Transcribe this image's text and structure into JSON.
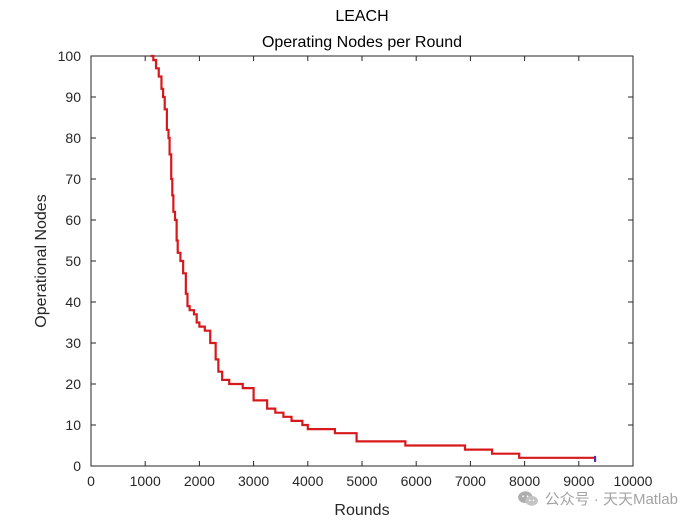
{
  "chart_data": {
    "type": "line",
    "title": "LEACH",
    "subtitle": "Operating Nodes per Round",
    "xlabel": "Rounds",
    "ylabel": "Operational Nodes",
    "xlim": [
      0,
      10000
    ],
    "ylim": [
      0,
      100
    ],
    "xticks": [
      0,
      1000,
      2000,
      3000,
      4000,
      5000,
      6000,
      7000,
      8000,
      9000,
      10000
    ],
    "yticks": [
      0,
      10,
      20,
      30,
      40,
      50,
      60,
      70,
      80,
      90,
      100
    ],
    "grid": false,
    "legend": "none",
    "color": "#d7191c",
    "series": [
      {
        "x": [
          1100,
          1150,
          1200,
          1250,
          1300,
          1330,
          1360,
          1400,
          1430,
          1450,
          1480,
          1500,
          1520,
          1550,
          1580,
          1600,
          1650,
          1700,
          1750,
          1780,
          1820,
          1850,
          1900,
          1950,
          2000,
          2100,
          2200,
          2300,
          2350,
          2420,
          2480,
          2550,
          2650,
          2800,
          3000,
          3100,
          3250,
          3400,
          3550,
          3700,
          3900,
          4000,
          4500,
          4900,
          5400,
          5800,
          6700,
          6900,
          7400,
          7900,
          8700,
          9300
        ],
        "y": [
          100,
          99,
          97,
          95,
          92,
          90,
          87,
          82,
          80,
          76,
          70,
          66,
          62,
          60,
          55,
          52,
          50,
          47,
          42,
          39,
          38,
          38,
          37,
          35,
          34,
          33,
          30,
          26,
          23,
          21,
          21,
          20,
          20,
          19,
          16,
          16,
          14,
          13,
          12,
          11,
          10,
          9,
          8,
          6,
          6,
          5,
          5,
          4,
          3,
          2,
          2,
          1
        ]
      }
    ]
  },
  "watermark": {
    "text": "公众号 · 天天Matlab",
    "icon": "wechat-icon"
  }
}
